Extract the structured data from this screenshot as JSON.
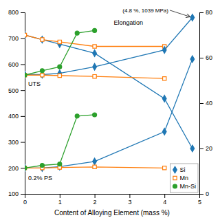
{
  "chart_data": {
    "type": "line",
    "xlabel": "Content of Alloying Element (mass %)",
    "xlim": [
      0,
      5
    ],
    "xticks": [
      0,
      1,
      2,
      3,
      4,
      5
    ],
    "ylim": [
      100,
      800
    ],
    "yticks": [
      100,
      200,
      300,
      400,
      500,
      600,
      700,
      800
    ],
    "y2lim": [
      0,
      80
    ],
    "y2ticks": [
      0,
      20,
      40,
      60,
      80
    ],
    "grid": false,
    "legend": "lower right",
    "series": [
      {
        "name": "Si",
        "axis": "y2",
        "marker": "diamond",
        "x": [
          0,
          0.5,
          1.0,
          2.0,
          4.0,
          4.8
        ],
        "values": [
          70,
          68,
          66,
          62,
          42,
          20
        ]
      },
      {
        "name": "Mn",
        "axis": "y2",
        "marker": "square-open",
        "x": [
          0,
          0.5,
          1.0,
          2.0,
          4.0
        ],
        "values": [
          70,
          68,
          67,
          65,
          65
        ]
      },
      {
        "name": "Si",
        "axis": "y",
        "marker": "diamond",
        "x": [
          0,
          0.5,
          1.0,
          2.0,
          4.0,
          4.8
        ],
        "values": [
          560,
          560,
          565,
          590,
          655,
          780
        ]
      },
      {
        "name": "Si",
        "axis": "y",
        "marker": "diamond",
        "x": [
          0,
          0.5,
          1.0,
          2.0,
          4.0,
          4.8
        ],
        "values": [
          200,
          200,
          205,
          225,
          340,
          620
        ]
      },
      {
        "name": "Mn",
        "axis": "y",
        "marker": "square-open",
        "x": [
          0,
          0.5,
          1.0,
          2.0,
          4.0
        ],
        "values": [
          558,
          558,
          556,
          553,
          545
        ]
      },
      {
        "name": "Mn",
        "axis": "y",
        "marker": "square-open",
        "x": [
          0,
          0.5,
          1.0,
          2.0,
          4.0
        ],
        "values": [
          200,
          200,
          202,
          204,
          200
        ]
      },
      {
        "name": "Mn-Si",
        "axis": "y",
        "marker": "circle",
        "x": [
          0,
          0.5,
          1.0,
          1.5,
          2.0
        ],
        "values": [
          558,
          575,
          590,
          720,
          730
        ]
      },
      {
        "name": "Mn-Si",
        "axis": "y",
        "marker": "circle",
        "x": [
          0,
          0.5,
          1.0,
          1.5,
          2.0
        ],
        "values": [
          200,
          210,
          215,
          400,
          405
        ]
      }
    ],
    "annotations": [
      {
        "text": "Elongation",
        "x": 2.55,
        "y": 745
      },
      {
        "text": "UTS",
        "x": 0.1,
        "y": 510
      },
      {
        "text": "0.2% PS",
        "x": 0.1,
        "y": 148
      },
      {
        "text": "(4.8 %, 1039 MPa)",
        "x": 4.8,
        "y": 780,
        "text_x": 2.8,
        "text_y": 795
      }
    ]
  }
}
